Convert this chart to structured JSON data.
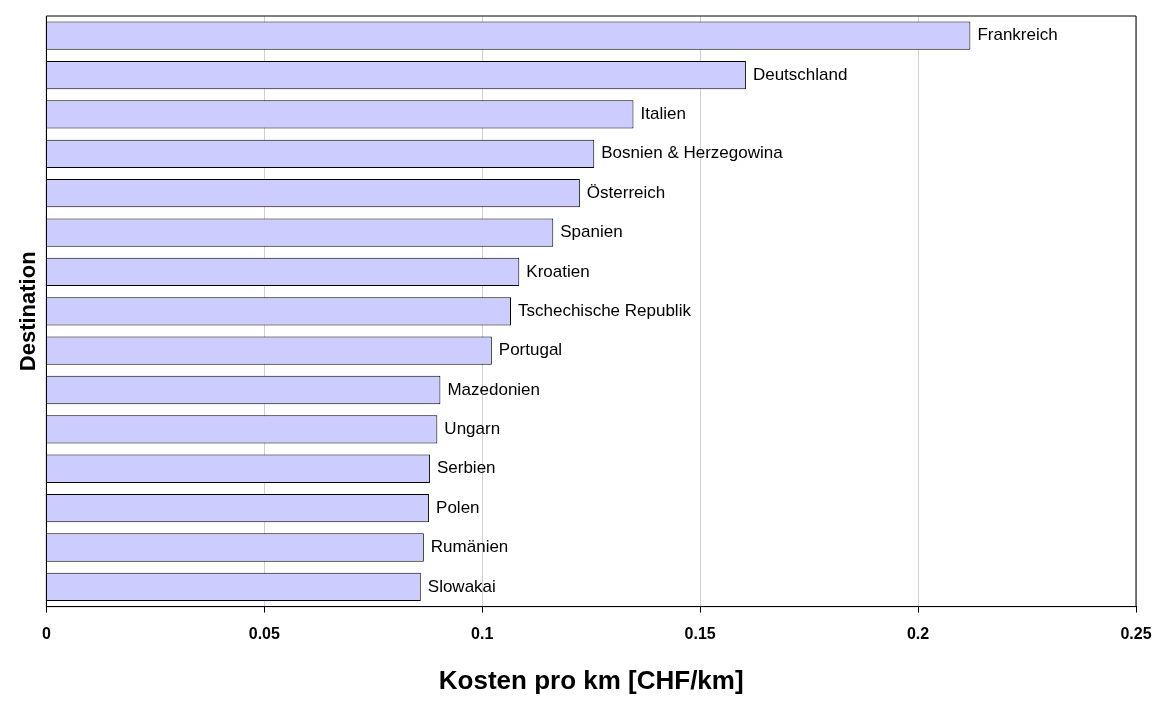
{
  "chart_data": {
    "type": "bar",
    "orientation": "horizontal",
    "xlabel": "Kosten pro km [CHF/km]",
    "ylabel": "Destination",
    "categories": [
      "Frankreich",
      "Deutschland",
      "Italien",
      "Bosnien & Herzegowina",
      "Österreich",
      "Spanien",
      "Kroatien",
      "Tschechische Republik",
      "Portugal",
      "Mazedonien",
      "Ungarn",
      "Serbien",
      "Polen",
      "Rumänien",
      "Slowakai"
    ],
    "values": [
      0.212,
      0.1605,
      0.1347,
      0.1257,
      0.1224,
      0.1163,
      0.1085,
      0.1066,
      0.1022,
      0.0904,
      0.0897,
      0.088,
      0.0878,
      0.0866,
      0.0859
    ],
    "color": "#ccccff",
    "xlim": [
      0,
      0.25
    ],
    "xticks": [
      0,
      0.05,
      0.1,
      0.15,
      0.2,
      0.25
    ],
    "grid": "x",
    "legend": false,
    "tick_labels": "x"
  }
}
